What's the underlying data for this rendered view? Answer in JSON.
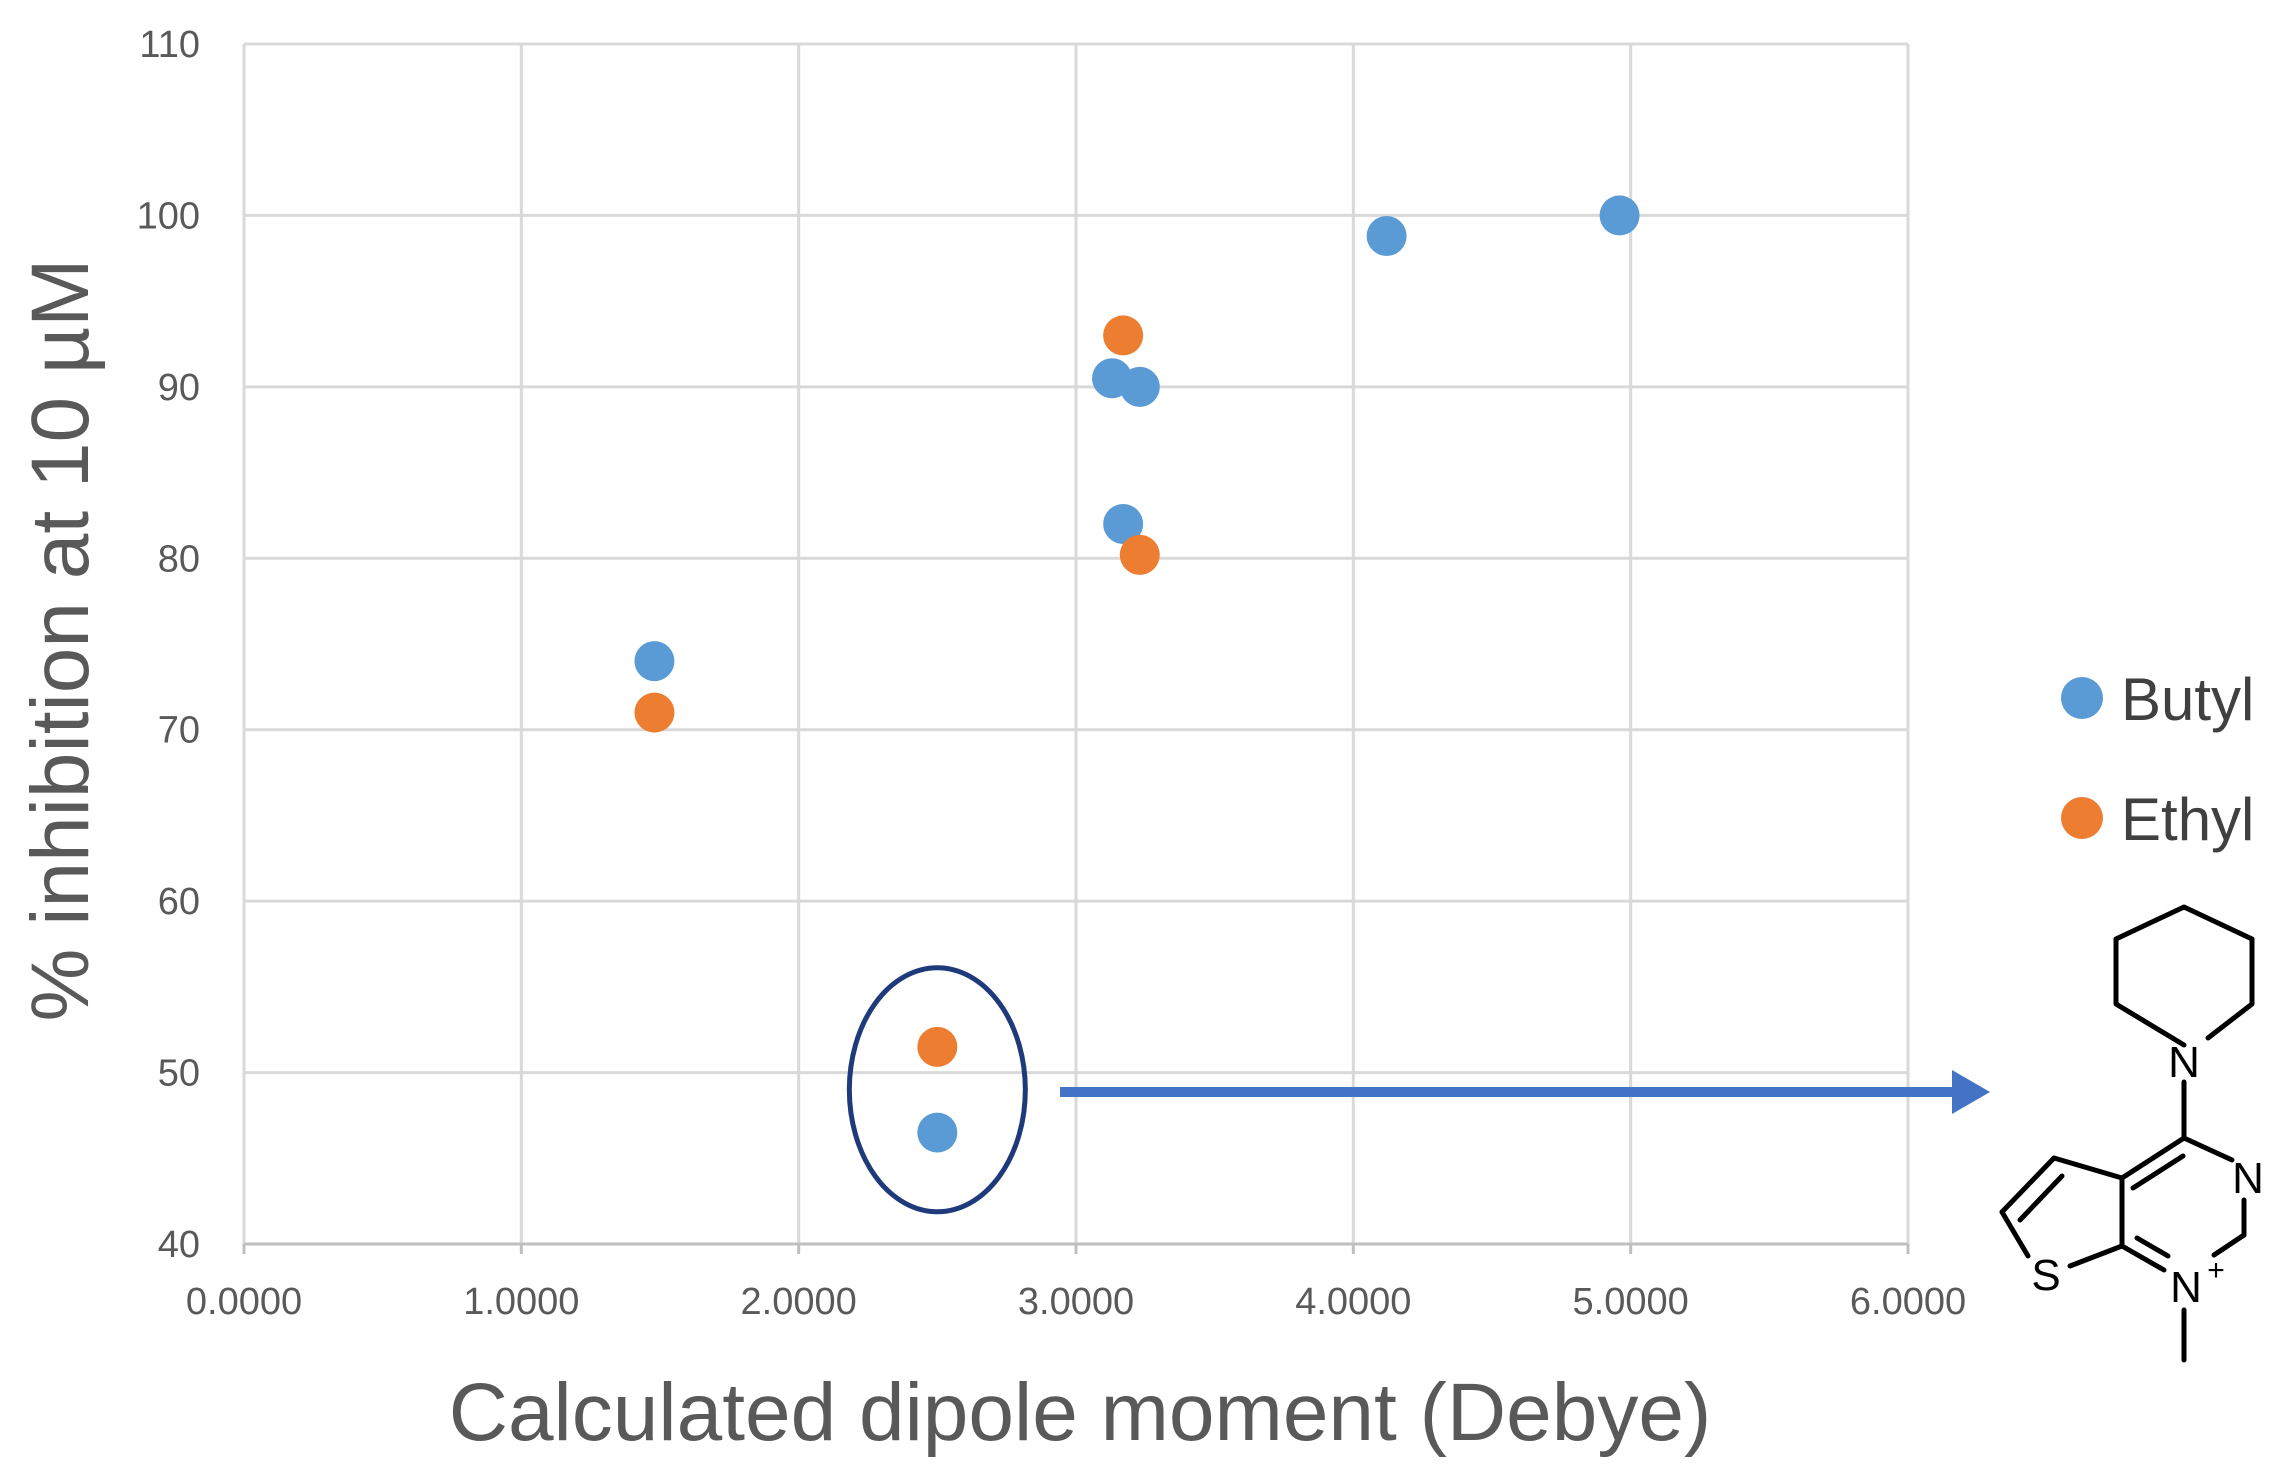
{
  "chart_data": {
    "type": "scatter",
    "xlabel": "Calculated dipole moment (Debye)",
    "ylabel": "% inhibition at 10 µM",
    "xlim": [
      0,
      6
    ],
    "ylim": [
      40,
      110
    ],
    "x_ticks": [
      "0.0000",
      "1.0000",
      "2.0000",
      "3.0000",
      "4.0000",
      "5.0000",
      "6.0000"
    ],
    "y_ticks": [
      "40",
      "50",
      "60",
      "70",
      "80",
      "90",
      "100",
      "110"
    ],
    "grid": true,
    "legend_position": "right",
    "series": [
      {
        "name": "Butyl",
        "color": "#5B9BD5",
        "points": [
          {
            "x": 1.48,
            "y": 74
          },
          {
            "x": 2.5,
            "y": 46.5
          },
          {
            "x": 3.13,
            "y": 90.5
          },
          {
            "x": 3.23,
            "y": 90
          },
          {
            "x": 3.17,
            "y": 82
          },
          {
            "x": 4.12,
            "y": 98.8
          },
          {
            "x": 4.96,
            "y": 100
          }
        ]
      },
      {
        "name": "Ethyl",
        "color": "#ED7D31",
        "points": [
          {
            "x": 1.48,
            "y": 71
          },
          {
            "x": 2.5,
            "y": 51.5
          },
          {
            "x": 3.17,
            "y": 93
          },
          {
            "x": 3.23,
            "y": 80.2
          }
        ]
      }
    ],
    "annotation": {
      "type": "ellipse-with-arrow",
      "highlighted_x": 2.5,
      "ellipse_color": "#1F3A7A",
      "arrow_color": "#4472C4"
    },
    "structure_labels": {
      "piperidine_n": "N",
      "ring_n": "N",
      "charged_n": "N",
      "charge": "+",
      "sulfur": "S"
    }
  }
}
